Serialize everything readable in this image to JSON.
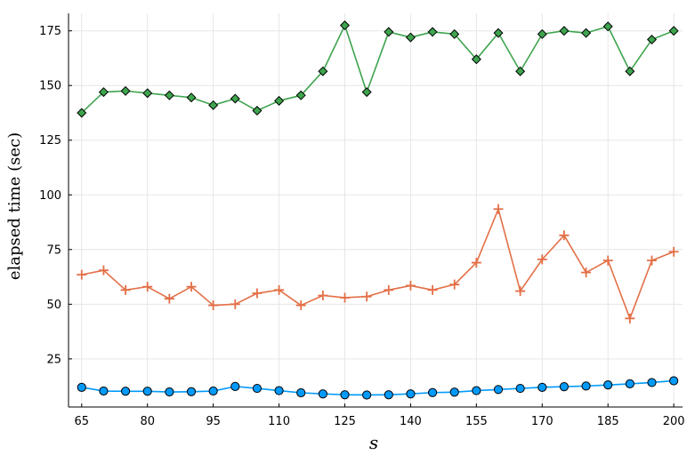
{
  "chart_data": {
    "type": "line",
    "title": "",
    "xlabel": "s",
    "ylabel": "elapsed time (sec)",
    "xlim": [
      62,
      202
    ],
    "ylim": [
      3,
      183
    ],
    "xticks": [
      65,
      80,
      95,
      110,
      125,
      140,
      155,
      170,
      185,
      200
    ],
    "yticks": [
      25,
      50,
      75,
      100,
      125,
      150,
      175
    ],
    "grid": true,
    "legend": "none",
    "x": [
      65,
      70,
      75,
      80,
      85,
      90,
      95,
      100,
      105,
      110,
      115,
      120,
      125,
      130,
      135,
      140,
      145,
      150,
      155,
      160,
      165,
      170,
      175,
      180,
      185,
      190,
      195,
      200
    ],
    "series": [
      {
        "marker": "circle",
        "color": "#009AFA",
        "values": [
          12,
          10.3,
          10.2,
          10.2,
          9.9,
          10,
          10.3,
          12.4,
          11.5,
          10.5,
          9.5,
          9,
          8.6,
          8.5,
          8.6,
          9,
          9.6,
          9.8,
          10.5,
          11,
          11.5,
          12,
          12.3,
          12.6,
          13.1,
          13.6,
          14.2,
          15
        ]
      },
      {
        "marker": "cross",
        "color": "#E36F47",
        "values": [
          63.5,
          65.5,
          56.5,
          58,
          52.5,
          58,
          49.5,
          50,
          55,
          56.5,
          49.5,
          54,
          53,
          53.5,
          56.5,
          58.5,
          56.5,
          59,
          69,
          93.5,
          56,
          70.5,
          81.5,
          64.5,
          70,
          43.5,
          70,
          74
        ]
      },
      {
        "marker": "diamond",
        "color": "#3EA44E",
        "values": [
          137.5,
          147,
          147.5,
          146.5,
          145.5,
          144.5,
          141,
          144,
          138.5,
          143,
          145.5,
          156.5,
          177.5,
          147,
          174.5,
          172,
          174.5,
          173.5,
          162,
          174,
          156.5,
          173.5,
          175,
          174,
          177,
          156.5,
          171,
          175
        ]
      }
    ]
  }
}
